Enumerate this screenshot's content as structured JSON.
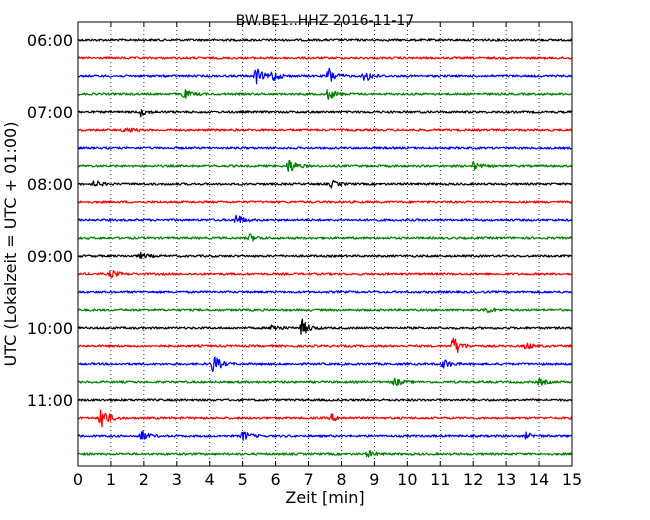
{
  "chart_data": {
    "type": "line",
    "title": "BW.BE1..HHZ 2016-11-17",
    "xlabel": "Zeit  [min]",
    "ylabel": "UTC (Lokalzeit = UTC + 01:00)",
    "xlim": [
      0,
      15
    ],
    "x_ticks": [
      "0",
      "1",
      "2",
      "3",
      "4",
      "5",
      "6",
      "7",
      "8",
      "9",
      "10",
      "11",
      "12",
      "13",
      "14",
      "15"
    ],
    "y_tick_labels": [
      "06:00",
      "07:00",
      "08:00",
      "09:00",
      "10:00",
      "11:00"
    ],
    "row_interval_minutes": 15,
    "row_count": 24,
    "start_time": "06:00",
    "grid": "vertical dotted",
    "colors": [
      "#000000",
      "#ff0000",
      "#0000ff",
      "#008000"
    ],
    "events": [
      {
        "row": 2,
        "minute": 5.4,
        "amplitude": 0.85
      },
      {
        "row": 2,
        "minute": 5.9,
        "amplitude": 0.6
      },
      {
        "row": 2,
        "minute": 7.6,
        "amplitude": 0.95
      },
      {
        "row": 2,
        "minute": 8.7,
        "amplitude": 0.7
      },
      {
        "row": 3,
        "minute": 3.2,
        "amplitude": 0.5
      },
      {
        "row": 3,
        "minute": 7.6,
        "amplitude": 0.6
      },
      {
        "row": 4,
        "minute": 1.9,
        "amplitude": 0.4
      },
      {
        "row": 5,
        "minute": 1.4,
        "amplitude": 0.35
      },
      {
        "row": 7,
        "minute": 6.4,
        "amplitude": 0.8
      },
      {
        "row": 7,
        "minute": 12.0,
        "amplitude": 0.4
      },
      {
        "row": 8,
        "minute": 0.5,
        "amplitude": 0.35
      },
      {
        "row": 8,
        "minute": 7.7,
        "amplitude": 0.35
      },
      {
        "row": 10,
        "minute": 4.8,
        "amplitude": 0.6
      },
      {
        "row": 11,
        "minute": 5.2,
        "amplitude": 0.4
      },
      {
        "row": 12,
        "minute": 1.9,
        "amplitude": 0.3
      },
      {
        "row": 13,
        "minute": 1.0,
        "amplitude": 0.4
      },
      {
        "row": 15,
        "minute": 12.4,
        "amplitude": 0.35
      },
      {
        "row": 16,
        "minute": 6.8,
        "amplitude": 0.85
      },
      {
        "row": 16,
        "minute": 5.9,
        "amplitude": 0.45
      },
      {
        "row": 17,
        "minute": 11.4,
        "amplitude": 1.1
      },
      {
        "row": 17,
        "minute": 13.6,
        "amplitude": 0.35
      },
      {
        "row": 18,
        "minute": 4.1,
        "amplitude": 1.0
      },
      {
        "row": 18,
        "minute": 11.1,
        "amplitude": 0.5
      },
      {
        "row": 19,
        "minute": 9.6,
        "amplitude": 0.45
      },
      {
        "row": 19,
        "minute": 14.0,
        "amplitude": 0.35
      },
      {
        "row": 21,
        "minute": 0.7,
        "amplitude": 1.4
      },
      {
        "row": 21,
        "minute": 7.7,
        "amplitude": 0.35
      },
      {
        "row": 22,
        "minute": 1.9,
        "amplitude": 0.6
      },
      {
        "row": 22,
        "minute": 5.0,
        "amplitude": 0.55
      },
      {
        "row": 22,
        "minute": 13.6,
        "amplitude": 0.3
      },
      {
        "row": 23,
        "minute": 8.8,
        "amplitude": 0.35
      }
    ]
  }
}
